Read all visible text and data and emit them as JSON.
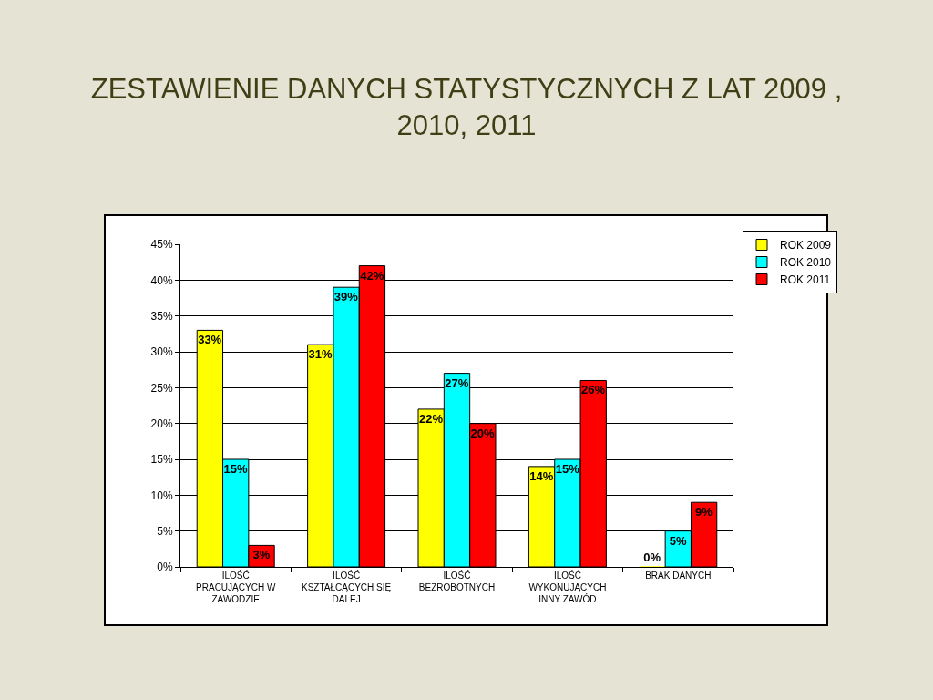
{
  "chart_data": {
    "type": "bar",
    "title": "ZESTAWIENIE DANYCH STATYSTYCZNYCH Z LAT 2009 , 2010, 2011",
    "categories": [
      "ILOŚĆ PRACUJĄCYCH W ZAWODZIE",
      "ILOŚĆ KSZTAŁCĄCYCH SIĘ DALEJ",
      "ILOŚĆ BEZROBOTNYCH",
      "ILOŚĆ WYKONUJĄCYCH INNY ZAWÓD",
      "BRAK DANYCH"
    ],
    "series": [
      {
        "name": "ROK 2009",
        "color": "#ffff00",
        "values": [
          33,
          31,
          22,
          14,
          0
        ],
        "value_labels": [
          "33%",
          "31%",
          "22%",
          "14%",
          "0%"
        ]
      },
      {
        "name": "ROK 2010",
        "color": "#00ffff",
        "values": [
          15,
          39,
          27,
          15,
          5
        ],
        "value_labels": [
          "15%",
          "39%",
          "27%",
          "15%",
          "5%"
        ]
      },
      {
        "name": "ROK 2011",
        "color": "#ff0000",
        "values": [
          3,
          42,
          20,
          26,
          9
        ],
        "value_labels": [
          "3%",
          "42%",
          "20%",
          "26%",
          "9%"
        ]
      }
    ],
    "ylim": [
      0,
      45
    ],
    "yticks": [
      {
        "value": 0,
        "label": "0%"
      },
      {
        "value": 5,
        "label": "5%"
      },
      {
        "value": 10,
        "label": "10%"
      },
      {
        "value": 15,
        "label": "15%"
      },
      {
        "value": 20,
        "label": "20%"
      },
      {
        "value": 25,
        "label": "25%"
      },
      {
        "value": 30,
        "label": "30%"
      },
      {
        "value": 35,
        "label": "35%"
      },
      {
        "value": 40,
        "label": "40%"
      },
      {
        "value": 45,
        "label": "45%"
      }
    ],
    "grid": "y",
    "legend": "top right"
  }
}
